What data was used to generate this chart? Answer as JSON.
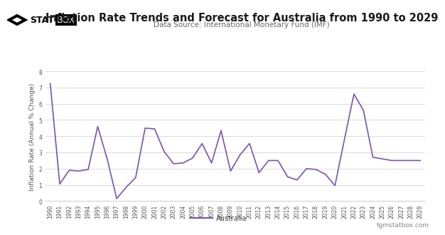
{
  "title": "Inflation Rate Trends and Forecast for Australia from 1990 to 2029",
  "subtitle": "Data Source: International Monetary Fund (IMF)",
  "ylabel": "Inflation Rate (Annual % Change)",
  "legend_label": "Australia",
  "footer_right": "tgmstatbox.com",
  "line_color": "#7B52AB",
  "line_width": 1.2,
  "background_color": "#ffffff",
  "plot_bg_color": "#ffffff",
  "grid_color": "#cccccc",
  "ylim": [
    0,
    8
  ],
  "yticks": [
    0,
    1,
    2,
    3,
    4,
    5,
    6,
    7,
    8
  ],
  "years": [
    1990,
    1991,
    1992,
    1993,
    1994,
    1995,
    1996,
    1997,
    1998,
    1999,
    2000,
    2001,
    2002,
    2003,
    2004,
    2005,
    2006,
    2007,
    2008,
    2009,
    2010,
    2011,
    2012,
    2013,
    2014,
    2015,
    2016,
    2017,
    2018,
    2019,
    2020,
    2021,
    2022,
    2023,
    2024,
    2025,
    2026,
    2027,
    2028,
    2029
  ],
  "values": [
    7.25,
    1.05,
    1.9,
    1.85,
    1.95,
    4.6,
    2.6,
    0.15,
    0.85,
    1.45,
    4.5,
    4.45,
    3.05,
    2.3,
    2.35,
    2.65,
    3.55,
    2.35,
    4.35,
    1.85,
    2.85,
    3.55,
    1.75,
    2.5,
    2.5,
    1.5,
    1.3,
    2.0,
    1.95,
    1.65,
    0.95,
    3.8,
    6.6,
    5.6,
    2.7,
    2.6,
    2.5,
    2.5,
    2.5,
    2.5
  ],
  "title_fontsize": 10.5,
  "subtitle_fontsize": 7.5,
  "tick_fontsize": 5.5,
  "ylabel_fontsize": 6.5,
  "footer_fontsize": 6.5,
  "legend_fontsize": 7
}
